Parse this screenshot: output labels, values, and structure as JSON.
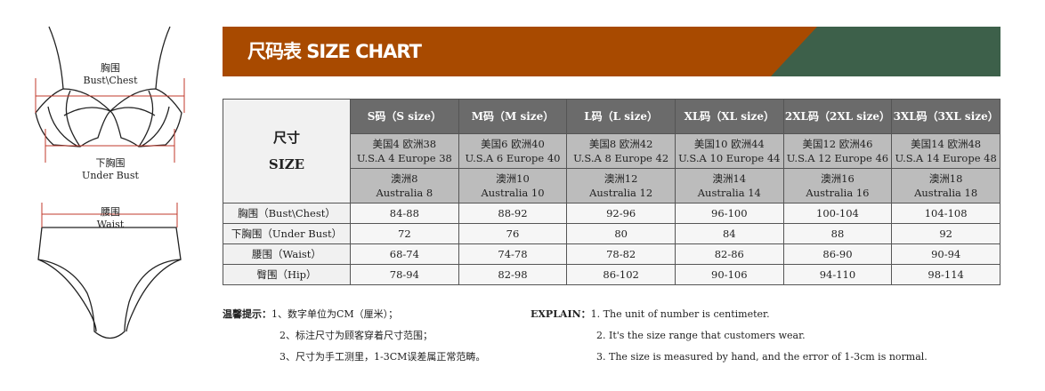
{
  "banner": {
    "title": "尺码表 SIZE CHART",
    "colors": {
      "orange": "#a84a00",
      "green": "#3d604a"
    }
  },
  "figure": {
    "bust_cn": "胸围",
    "bust_en": "Bust\\Chest",
    "under_cn": "下胸围",
    "under_en": "Under Bust",
    "waist_cn": "腰围",
    "waist_en": "Waist"
  },
  "table": {
    "corner_cn": "尺寸",
    "corner_en": "SIZE",
    "sizes": [
      {
        "label": "S码（S size）",
        "us_eu_cn": "美国4 欧洲38",
        "us_eu_en": "U.S.A 4  Europe 38",
        "au_cn": "澳洲8",
        "au_en": "Australia 8"
      },
      {
        "label": "M码（M size）",
        "us_eu_cn": "美国6 欧洲40",
        "us_eu_en": "U.S.A 6  Europe 40",
        "au_cn": "澳洲10",
        "au_en": "Australia 10"
      },
      {
        "label": "L码（L size）",
        "us_eu_cn": "美国8 欧洲42",
        "us_eu_en": "U.S.A 8  Europe 42",
        "au_cn": "澳洲12",
        "au_en": "Australia 12"
      },
      {
        "label": "XL码（XL size）",
        "us_eu_cn": "美国10 欧洲44",
        "us_eu_en": "U.S.A 10  Europe 44",
        "au_cn": "澳洲14",
        "au_en": "Australia 14"
      },
      {
        "label": "2XL码（2XL size）",
        "us_eu_cn": "美国12 欧洲46",
        "us_eu_en": "U.S.A 12  Europe 46",
        "au_cn": "澳洲16",
        "au_en": "Australia 16"
      },
      {
        "label": "3XL码（3XL size）",
        "us_eu_cn": "美国14 欧洲48",
        "us_eu_en": "U.S.A 14  Europe 48",
        "au_cn": "澳洲18",
        "au_en": "Australia 18"
      }
    ],
    "rows": [
      {
        "label": "胸围（Bust\\Chest）",
        "values": [
          "84-88",
          "88-92",
          "92-96",
          "96-100",
          "100-104",
          "104-108"
        ]
      },
      {
        "label": "下胸围（Under Bust）",
        "values": [
          "72",
          "76",
          "80",
          "84",
          "88",
          "92"
        ]
      },
      {
        "label": "腰围（Waist）",
        "values": [
          "68-74",
          "74-78",
          "78-82",
          "82-86",
          "86-90",
          "90-94"
        ]
      },
      {
        "label": "臀围（Hip）",
        "values": [
          "78-94",
          "82-98",
          "86-102",
          "90-106",
          "94-110",
          "98-114"
        ]
      }
    ]
  },
  "notes": {
    "cn_title": "温馨提示：",
    "cn": [
      "1、数字单位为CM（厘米）；",
      "2、标注尺寸为顾客穿着尺寸范围；",
      "3、尺寸为手工测里，1-3CM误差属正常范畴。"
    ],
    "en_title": "EXPLAIN：",
    "en": [
      "1. The unit of number is centimeter.",
      "2. It's the size range that customers wear.",
      "3. The size is measured by hand, and the error of 1-3cm is normal."
    ]
  }
}
